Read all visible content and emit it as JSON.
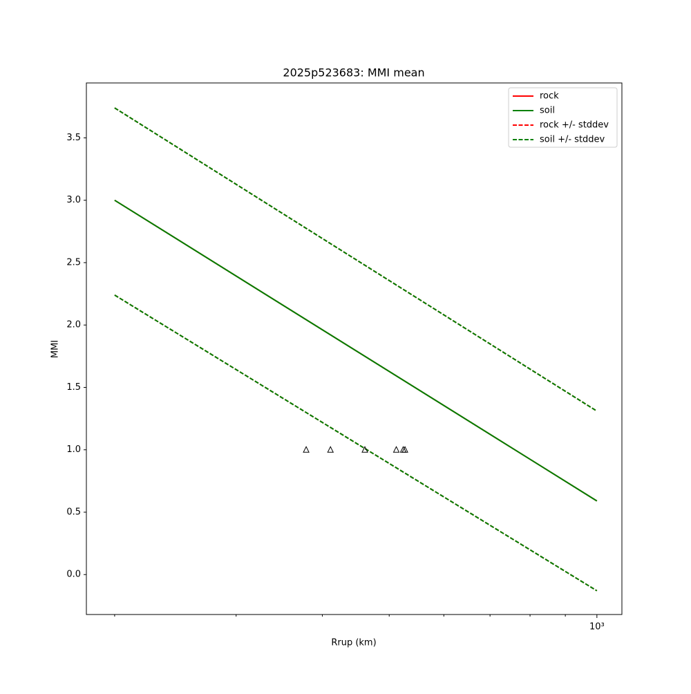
{
  "chart_data": {
    "type": "line",
    "title": "2025p523683: MMI mean",
    "xlabel": "Rrup (km)",
    "ylabel": "MMI",
    "xscale": "log",
    "x": [
      200,
      1000
    ],
    "series": [
      {
        "name": "rock",
        "color": "#ff0000",
        "dash": false,
        "values": [
          3.0,
          0.59
        ]
      },
      {
        "name": "soil",
        "color": "#008000",
        "dash": false,
        "values": [
          3.0,
          0.59
        ]
      },
      {
        "name": "rock +/- stddev",
        "color": "#ff0000",
        "dash": true,
        "values": [
          3.74,
          1.31
        ],
        "lower": [
          2.24,
          -0.13
        ]
      },
      {
        "name": "soil +/- stddev",
        "color": "#008000",
        "dash": true,
        "values": [
          3.74,
          1.31
        ],
        "lower": [
          2.24,
          -0.13
        ]
      }
    ],
    "points": {
      "x": [
        379,
        411,
        461,
        512,
        524,
        527
      ],
      "values": [
        1.0,
        1.0,
        1.0,
        1.0,
        1.0,
        1.0
      ],
      "color": "#000000"
    },
    "xlim": [
      182,
      1087
    ],
    "xticks": [
      {
        "value": 1000,
        "label": "10³"
      }
    ],
    "xminorticks": [
      200,
      300,
      400,
      500,
      600,
      700,
      800,
      900
    ],
    "ylim": [
      -0.32,
      3.94
    ],
    "yticks": [
      {
        "value": 0,
        "label": "0.0"
      },
      {
        "value": 0.5,
        "label": "0.5"
      },
      {
        "value": 1,
        "label": "1.0"
      },
      {
        "value": 1.5,
        "label": "1.5"
      },
      {
        "value": 2,
        "label": "2.0"
      },
      {
        "value": 2.5,
        "label": "2.5"
      },
      {
        "value": 3,
        "label": "3.0"
      },
      {
        "value": 3.5,
        "label": "3.5"
      }
    ],
    "legend": "upper right"
  }
}
